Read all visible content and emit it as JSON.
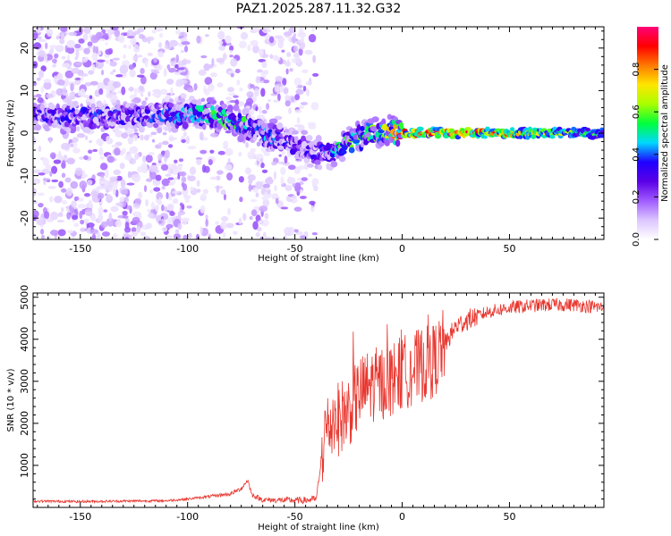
{
  "title": "PAZ1.2025.287.11.32.G32",
  "chart_data": [
    {
      "type": "heatmap",
      "xlabel": "Height of straight line (km)",
      "ylabel": "Frequency (Hz)",
      "xlim": [
        -172,
        94
      ],
      "ylim": [
        -25,
        25
      ],
      "xticks": [
        -150,
        -100,
        -50,
        0,
        50
      ],
      "yticks": [
        -20,
        -10,
        0,
        10,
        20
      ],
      "colorbar": {
        "label": "Normalized spectral amplitude",
        "range": [
          0,
          1
        ],
        "ticks": [
          0.0,
          0.2,
          0.4,
          0.6,
          0.8
        ],
        "colormap": [
          "#ffffff",
          "#dcc6ff",
          "#a05bff",
          "#5a00e6",
          "#1f00ff",
          "#00d8ff",
          "#00ff3c",
          "#a8ff00",
          "#ffe600",
          "#ff7a00",
          "#ff0000",
          "#ff0078"
        ]
      },
      "description_points": [
        {
          "x": -120,
          "y": 4,
          "amp": 0.35
        },
        {
          "x": -90,
          "y": 4.5,
          "amp": 0.5
        },
        {
          "x": -80,
          "y": 3,
          "amp": 0.55
        },
        {
          "x": -45,
          "y": -4,
          "amp": 0.3
        },
        {
          "x": -35,
          "y": -5,
          "amp": 0.4
        },
        {
          "x": -25,
          "y": -2,
          "amp": 0.55
        },
        {
          "x": -10,
          "y": 0.5,
          "amp": 0.6
        },
        {
          "x": 0,
          "y": 0,
          "amp": 0.85
        },
        {
          "x": 30,
          "y": 0,
          "amp": 0.9
        },
        {
          "x": 60,
          "y": 0,
          "amp": 0.7
        },
        {
          "x": 90,
          "y": 0,
          "amp": 0.55
        }
      ]
    },
    {
      "type": "line",
      "xlabel": "Height of straight line (km)",
      "ylabel": "SNR (10 * v/v)",
      "xlim": [
        -172,
        94
      ],
      "ylim": [
        0,
        5100
      ],
      "xticks": [
        -150,
        -100,
        -50,
        0,
        50
      ],
      "yticks": [
        1000,
        2000,
        3000,
        4000,
        5000
      ],
      "series": [
        {
          "name": "SNR",
          "color": "#e8372f",
          "x": [
            -172,
            -150,
            -130,
            -110,
            -100,
            -90,
            -80,
            -75,
            -72,
            -70,
            -65,
            -55,
            -45,
            -40,
            -36,
            -33,
            -30,
            -25,
            -20,
            -15,
            -10,
            -5,
            0,
            5,
            10,
            15,
            20,
            25,
            30,
            40,
            50,
            60,
            70,
            80,
            94
          ],
          "y": [
            150,
            140,
            150,
            160,
            200,
            260,
            320,
            450,
            650,
            300,
            180,
            170,
            170,
            200,
            1800,
            2000,
            2100,
            2300,
            2700,
            2900,
            2950,
            3050,
            3200,
            3300,
            3400,
            3500,
            3900,
            4300,
            4450,
            4650,
            4750,
            4800,
            4820,
            4820,
            4750
          ]
        }
      ]
    }
  ]
}
